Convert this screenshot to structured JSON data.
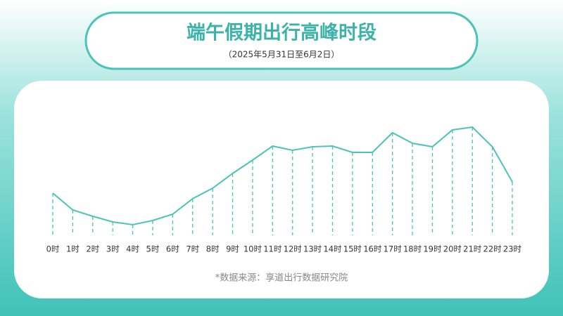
{
  "header": {
    "title": "端午假期出行高峰时段",
    "subtitle": "（2025年5月31日至6月2日）"
  },
  "chart_data": {
    "type": "line",
    "categories": [
      "0时",
      "1时",
      "2时",
      "3时",
      "4时",
      "5时",
      "6时",
      "7时",
      "8时",
      "9时",
      "10时",
      "11时",
      "12时",
      "13时",
      "14时",
      "15时",
      "16时",
      "17时",
      "18时",
      "19时",
      "20时",
      "21时",
      "22时",
      "23时"
    ],
    "values": [
      60,
      36,
      27,
      19,
      15,
      21,
      30,
      52,
      67,
      88,
      107,
      127,
      121,
      126,
      127,
      118,
      118,
      146,
      131,
      126,
      150,
      154,
      126,
      76
    ],
    "color": "#4cc3b9"
  },
  "source": "*数据来源：享道出行数据研究院"
}
